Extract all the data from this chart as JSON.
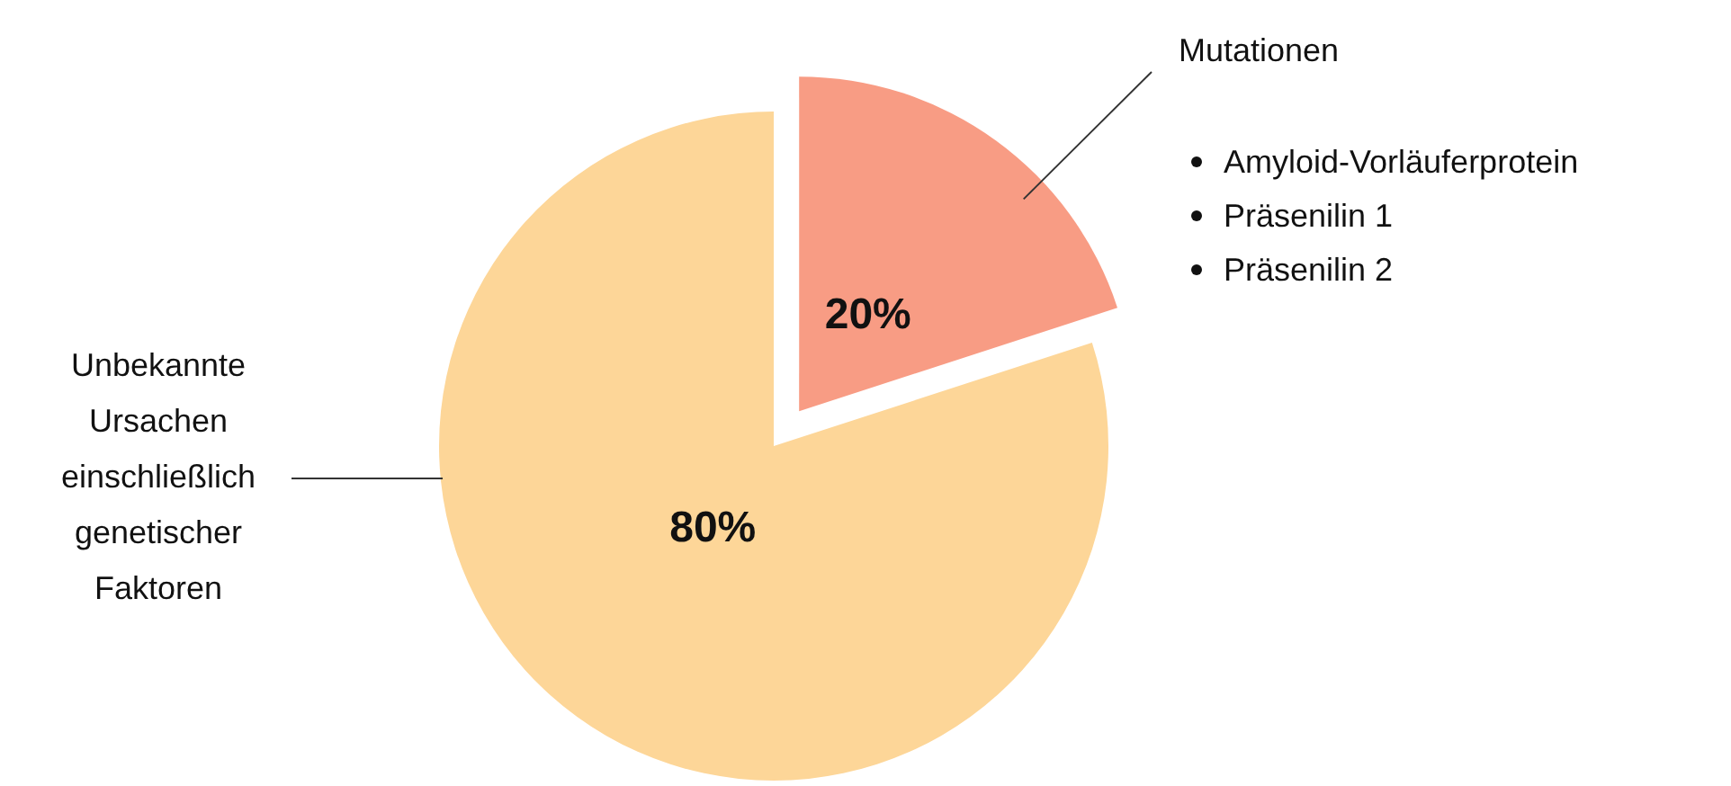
{
  "chart_data": {
    "type": "pie",
    "categories": [
      "Mutationen",
      "Unbekannte Ursachen einschließlich genetischer Faktoren"
    ],
    "values": [
      20,
      80
    ],
    "colors": [
      "#f89c84",
      "#fdd698"
    ],
    "value_labels": [
      "20%",
      "80%"
    ],
    "annotations": [
      "Amyloid-Vorläuferprotein",
      "Präsenilin 1",
      "Präsenilin 2"
    ]
  }
}
